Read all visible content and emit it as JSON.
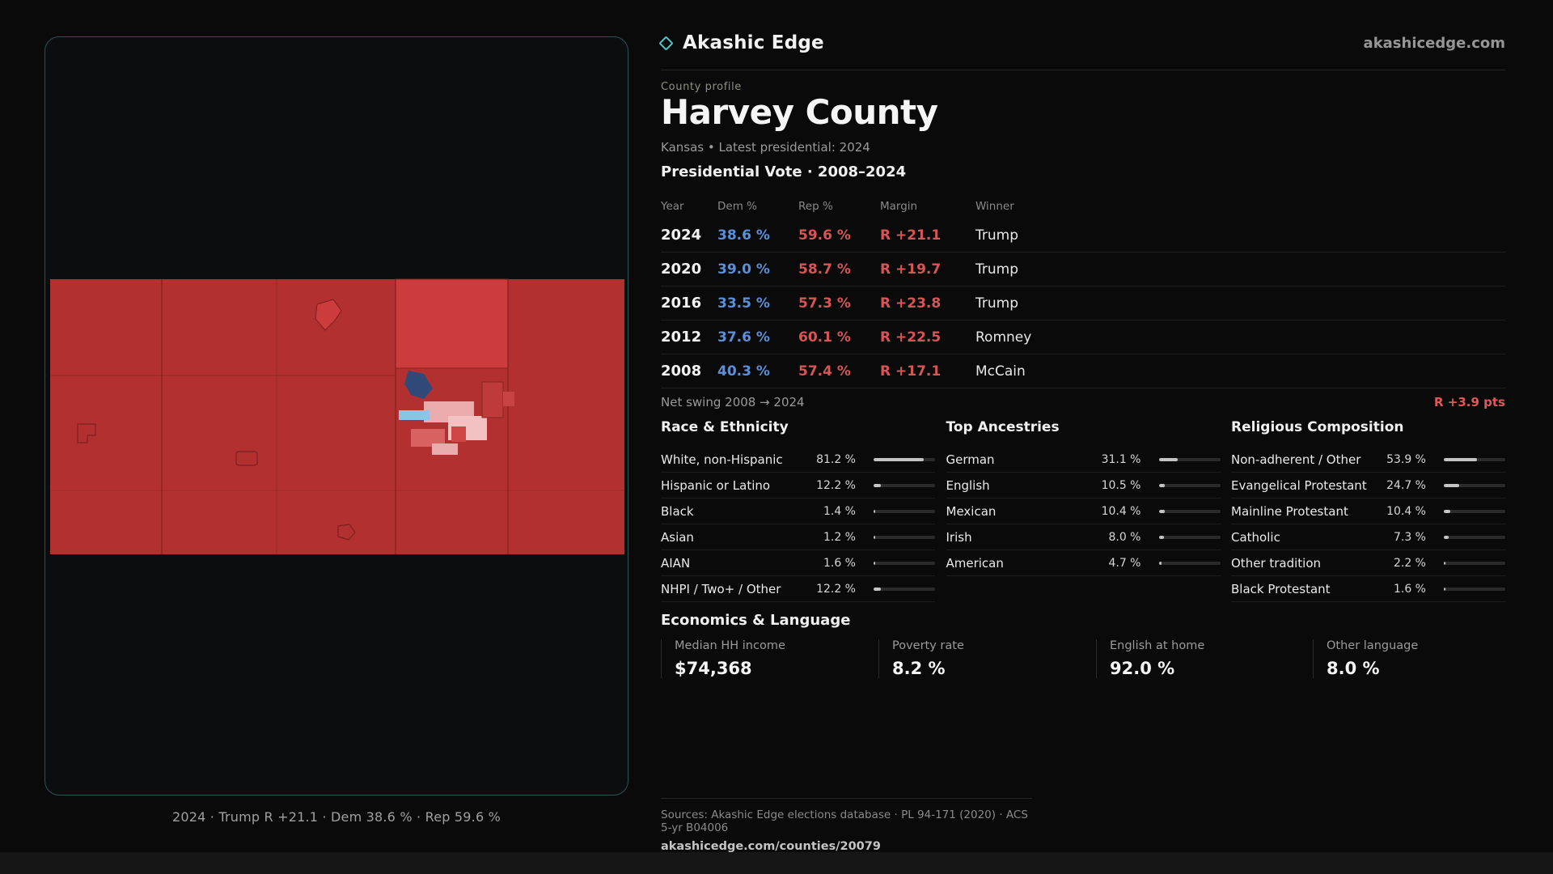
{
  "brand": {
    "name": "Akashic Edge",
    "domain": "akashicedge.com"
  },
  "map": {
    "caption": "2024 · Trump R +21.1 · Dem 38.6 % · Rep 59.6 %"
  },
  "profile": {
    "kicker": "County profile",
    "title": "Harvey County",
    "subtitle": "Kansas • Latest presidential: 2024"
  },
  "vote": {
    "heading": "Presidential Vote · 2008–2024",
    "columns": [
      "Year",
      "Dem %",
      "Rep %",
      "Margin",
      "Winner"
    ],
    "rows": [
      {
        "year": "2024",
        "dem": "38.6 %",
        "rep": "59.6 %",
        "margin": "R +21.1",
        "winner": "Trump"
      },
      {
        "year": "2020",
        "dem": "39.0 %",
        "rep": "58.7 %",
        "margin": "R +19.7",
        "winner": "Trump"
      },
      {
        "year": "2016",
        "dem": "33.5 %",
        "rep": "57.3 %",
        "margin": "R +23.8",
        "winner": "Trump"
      },
      {
        "year": "2012",
        "dem": "37.6 %",
        "rep": "60.1 %",
        "margin": "R +22.5",
        "winner": "Romney"
      },
      {
        "year": "2008",
        "dem": "40.3 %",
        "rep": "57.4 %",
        "margin": "R +17.1",
        "winner": "McCain"
      }
    ],
    "net_swing_label": "Net swing 2008 → 2024",
    "net_swing_value": "R +3.9 pts"
  },
  "demographics": {
    "columns": [
      {
        "heading": "Race & Ethnicity",
        "rows": [
          {
            "label": "White, non-Hispanic",
            "value": "81.2 %",
            "pct": 81.2
          },
          {
            "label": "Hispanic or Latino",
            "value": "12.2 %",
            "pct": 12.2
          },
          {
            "label": "Black",
            "value": "1.4 %",
            "pct": 1.4
          },
          {
            "label": "Asian",
            "value": "1.2 %",
            "pct": 1.2
          },
          {
            "label": "AIAN",
            "value": "1.6 %",
            "pct": 1.6
          },
          {
            "label": "NHPI / Two+ / Other",
            "value": "12.2 %",
            "pct": 12.2
          }
        ]
      },
      {
        "heading": "Top Ancestries",
        "rows": [
          {
            "label": "German",
            "value": "31.1 %",
            "pct": 31.1
          },
          {
            "label": "English",
            "value": "10.5 %",
            "pct": 10.5
          },
          {
            "label": "Mexican",
            "value": "10.4 %",
            "pct": 10.4
          },
          {
            "label": "Irish",
            "value": "8.0 %",
            "pct": 8.0
          },
          {
            "label": "American",
            "value": "4.7 %",
            "pct": 4.7
          }
        ]
      },
      {
        "heading": "Religious Composition",
        "rows": [
          {
            "label": "Non-adherent / Other",
            "value": "53.9 %",
            "pct": 53.9
          },
          {
            "label": "Evangelical Protestant",
            "value": "24.7 %",
            "pct": 24.7
          },
          {
            "label": "Mainline Protestant",
            "value": "10.4 %",
            "pct": 10.4
          },
          {
            "label": "Catholic",
            "value": "7.3 %",
            "pct": 7.3
          },
          {
            "label": "Other tradition",
            "value": "2.2 %",
            "pct": 2.2
          },
          {
            "label": "Black Protestant",
            "value": "1.6 %",
            "pct": 1.6
          }
        ]
      }
    ]
  },
  "economics": {
    "heading": "Economics & Language",
    "stats": [
      {
        "label": "Median HH income",
        "value": "$74,368"
      },
      {
        "label": "Poverty rate",
        "value": "8.2 %"
      },
      {
        "label": "English at home",
        "value": "92.0 %"
      },
      {
        "label": "Other language",
        "value": "8.0 %"
      }
    ]
  },
  "footer": {
    "sources": "Sources: Akashic Edge elections database · PL 94-171 (2020) · ACS 5-yr B04006",
    "permalink": "akashicedge.com/counties/20079"
  },
  "colors": {
    "accent": "#4fc8c8",
    "dem": "#5b8fd8",
    "rep": "#d85555",
    "map-red": "#b23030",
    "map-red-bright": "#cd3c3c",
    "map-navy": "#2f4a78",
    "map-pink": "#e9abab",
    "map-blue": "#8fc2e8",
    "bar-fill": "#c4c4c4"
  }
}
